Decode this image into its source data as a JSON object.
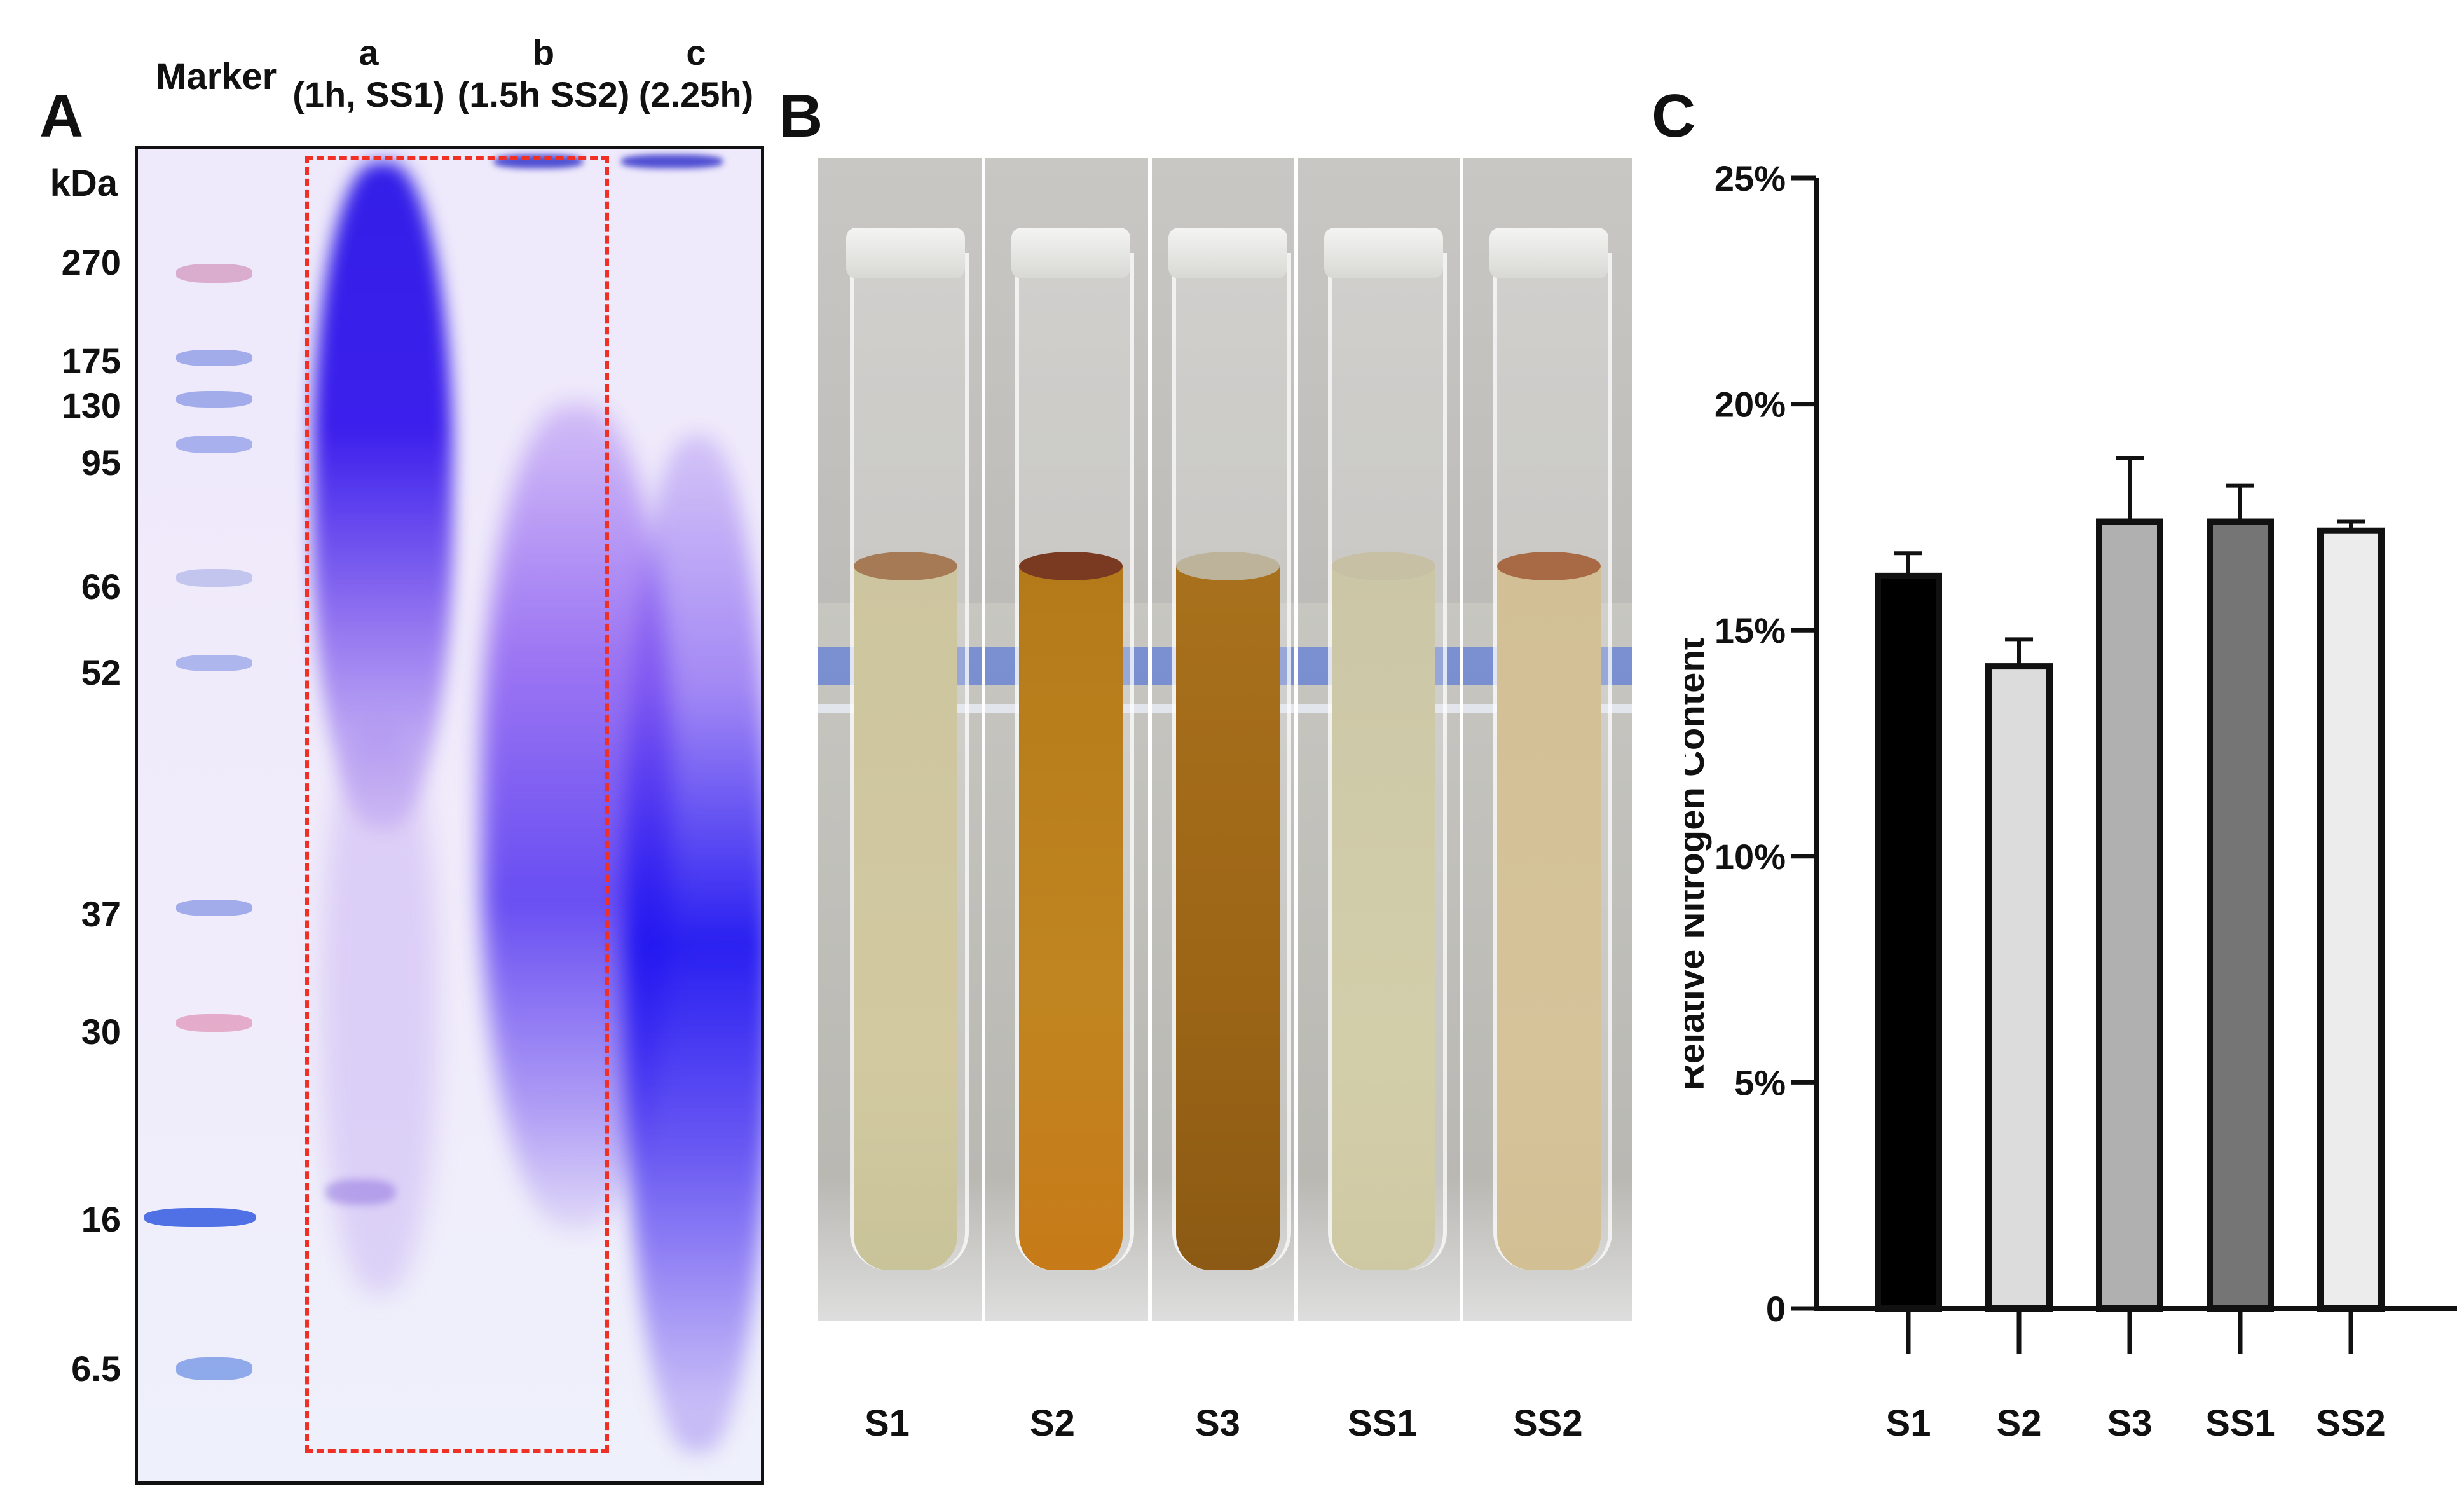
{
  "panels": {
    "A": {
      "letter": "A",
      "ladder_unit": "kDa",
      "marker_label": "Marker",
      "lanes": [
        {
          "id": "a",
          "line1": "a",
          "line2": "(1h, SS1)"
        },
        {
          "id": "b",
          "line1": "b",
          "line2": "(1.5h SS2)"
        },
        {
          "id": "c",
          "line1": "c",
          "line2": "(2.25h)"
        }
      ],
      "mw_markers": [
        "270",
        "175",
        "130",
        "95",
        "66",
        "52",
        "37",
        "30",
        "16",
        "6.5"
      ]
    },
    "B": {
      "letter": "B",
      "tubes": [
        "S1",
        "S2",
        "S3",
        "SS1",
        "SS2"
      ]
    },
    "C": {
      "letter": "C"
    }
  },
  "chart_data": {
    "type": "bar",
    "title": "",
    "xlabel": "",
    "ylabel": "Relative Nitrogen Content",
    "categories": [
      "S1",
      "S2",
      "S3",
      "SS1",
      "SS2"
    ],
    "values": [
      0.162,
      0.142,
      0.174,
      0.174,
      0.172
    ],
    "errors": [
      0.005,
      0.006,
      0.014,
      0.008,
      0.002
    ],
    "bar_colors": [
      "#000000",
      "#dcdcdc",
      "#b0b0b0",
      "#757575",
      "#ececec"
    ],
    "ylim": [
      0,
      0.25
    ],
    "yticks": [
      0,
      0.05,
      0.1,
      0.15,
      0.2,
      0.25
    ],
    "ytick_labels": [
      "0",
      "5%",
      "10%",
      "15%",
      "20%",
      "25%"
    ],
    "grid": false
  }
}
